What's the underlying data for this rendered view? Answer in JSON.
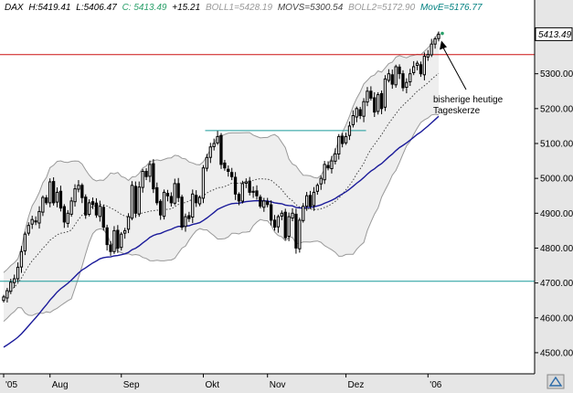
{
  "header": {
    "symbol": "DAX",
    "high": "H:5419.41",
    "low": "L:5406.47",
    "close": "C: 5413.49",
    "change": "+15.21",
    "boll1": "BOLL1=5428.19",
    "movs": "MOVS=5300.54",
    "boll2": "BOLL2=5172.90",
    "move": "MovE=5176.77"
  },
  "colors": {
    "close": "#2aa06a",
    "boll": "#999999",
    "movs": "#444444",
    "move": "#008080",
    "ema": "#1a1a9a",
    "band_fill": "#eeeeee",
    "resistance": "#cc1111",
    "support": "#1a9a9a",
    "candle": "#000000",
    "axis_bg": "#e6e6e6"
  },
  "chart_data": {
    "type": "candlestick",
    "instrument": "DAX",
    "x_labels": [
      "'05",
      "Aug",
      "Sep",
      "Okt",
      "Nov",
      "Dez",
      "'06"
    ],
    "y_ticks": [
      4500,
      4600,
      4700,
      4800,
      4900,
      5000,
      5100,
      5200,
      5300
    ],
    "ylim": [
      4450,
      5480
    ],
    "last_value": "5413.49",
    "horizontal_lines": [
      {
        "name": "resistance",
        "value": 5355
      },
      {
        "name": "support",
        "value": 4705
      }
    ],
    "trendline": {
      "value": 5137,
      "from_label": "Okt",
      "to_label": "Dez"
    },
    "annotation": {
      "line1": "bisherige heutige",
      "line2": "Tageskerze",
      "target_value": 5400
    },
    "closes": [
      4660,
      4678,
      4702,
      4712,
      4745,
      4790,
      4840,
      4865,
      4882,
      4875,
      4905,
      4945,
      4930,
      4990,
      4930,
      4960,
      4915,
      4875,
      4900,
      4935,
      4970,
      4980,
      4945,
      4895,
      4930,
      4925,
      4895,
      4920,
      4860,
      4810,
      4790,
      4850,
      4800,
      4840,
      4850,
      4890,
      4980,
      4900,
      4975,
      5020,
      5005,
      5040,
      4970,
      4930,
      4895,
      4960,
      4950,
      4930,
      4985,
      4945,
      4860,
      4890,
      4885,
      4955,
      4930,
      4945,
      5030,
      5060,
      5090,
      5100,
      5120,
      5040,
      5030,
      5020,
      5005,
      4955,
      4935,
      4985,
      4990,
      4960,
      4960,
      4950,
      4920,
      4935,
      4925,
      4880,
      4860,
      4890,
      4900,
      4830,
      4890,
      4900,
      4800,
      4880,
      4920,
      4950,
      4920,
      4960,
      4980,
      5000,
      5040,
      5030,
      5050,
      5070,
      5120,
      5100,
      5120,
      5150,
      5180,
      5200,
      5180,
      5220,
      5250,
      5230,
      5190,
      5240,
      5200,
      5285,
      5300,
      5270,
      5320,
      5300,
      5260,
      5275,
      5300,
      5320,
      5330,
      5300,
      5350,
      5355,
      5385,
      5400,
      5413
    ]
  }
}
